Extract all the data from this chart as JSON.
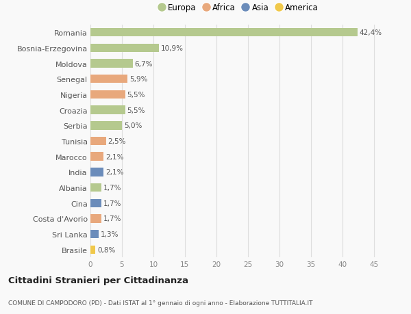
{
  "countries": [
    "Romania",
    "Bosnia-Erzegovina",
    "Moldova",
    "Senegal",
    "Nigeria",
    "Croazia",
    "Serbia",
    "Tunisia",
    "Marocco",
    "India",
    "Albania",
    "Cina",
    "Costa d'Avorio",
    "Sri Lanka",
    "Brasile"
  ],
  "values": [
    42.4,
    10.9,
    6.7,
    5.9,
    5.5,
    5.5,
    5.0,
    2.5,
    2.1,
    2.1,
    1.7,
    1.7,
    1.7,
    1.3,
    0.8
  ],
  "labels": [
    "42,4%",
    "10,9%",
    "6,7%",
    "5,9%",
    "5,5%",
    "5,5%",
    "5,0%",
    "2,5%",
    "2,1%",
    "2,1%",
    "1,7%",
    "1,7%",
    "1,7%",
    "1,3%",
    "0,8%"
  ],
  "continents": [
    "Europa",
    "Europa",
    "Europa",
    "Africa",
    "Africa",
    "Europa",
    "Europa",
    "Africa",
    "Africa",
    "Asia",
    "Europa",
    "Asia",
    "Africa",
    "Asia",
    "America"
  ],
  "continent_colors": {
    "Europa": "#b5c98e",
    "Africa": "#e8a87c",
    "Asia": "#6b8cba",
    "America": "#f0c84a"
  },
  "legend_order": [
    "Europa",
    "Africa",
    "Asia",
    "America"
  ],
  "title": "Cittadini Stranieri per Cittadinanza",
  "subtitle": "COMUNE DI CAMPODORO (PD) - Dati ISTAT al 1° gennaio di ogni anno - Elaborazione TUTTITALIA.IT",
  "xlim": [
    0,
    47
  ],
  "xticks": [
    0,
    5,
    10,
    15,
    20,
    25,
    30,
    35,
    40,
    45
  ],
  "background_color": "#f9f9f9",
  "grid_color": "#dddddd"
}
